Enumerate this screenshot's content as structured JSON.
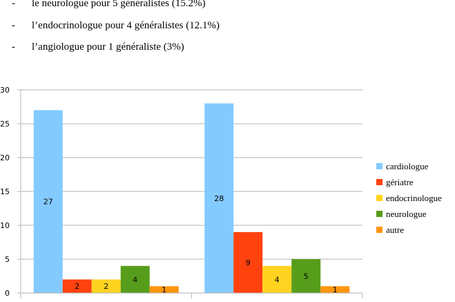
{
  "bullets": [
    "le neurologue pour 5 généralistes (15.2%)",
    "l’endocrinologue pour 4 généralistes (12.1%)",
    "l’angiologue pour 1 généraliste (3%)"
  ],
  "chart_data": {
    "type": "bar",
    "categories": [
      null,
      null
    ],
    "series": [
      {
        "name": "cardiologue",
        "color": "#83caff",
        "values": [
          27,
          28
        ]
      },
      {
        "name": "gériatre",
        "color": "#ff420e",
        "values": [
          2,
          9
        ]
      },
      {
        "name": "endocrinologue",
        "color": "#ffd320",
        "values": [
          2,
          4
        ]
      },
      {
        "name": "neurologue",
        "color": "#579d1c",
        "values": [
          4,
          5
        ]
      },
      {
        "name": "autre",
        "color": "#ff950e",
        "values": [
          1,
          1
        ]
      }
    ],
    "ylim": [
      0,
      30
    ],
    "yticks": [
      0,
      5,
      10,
      15,
      20,
      25,
      30
    ],
    "grid": true,
    "legend": "right"
  }
}
